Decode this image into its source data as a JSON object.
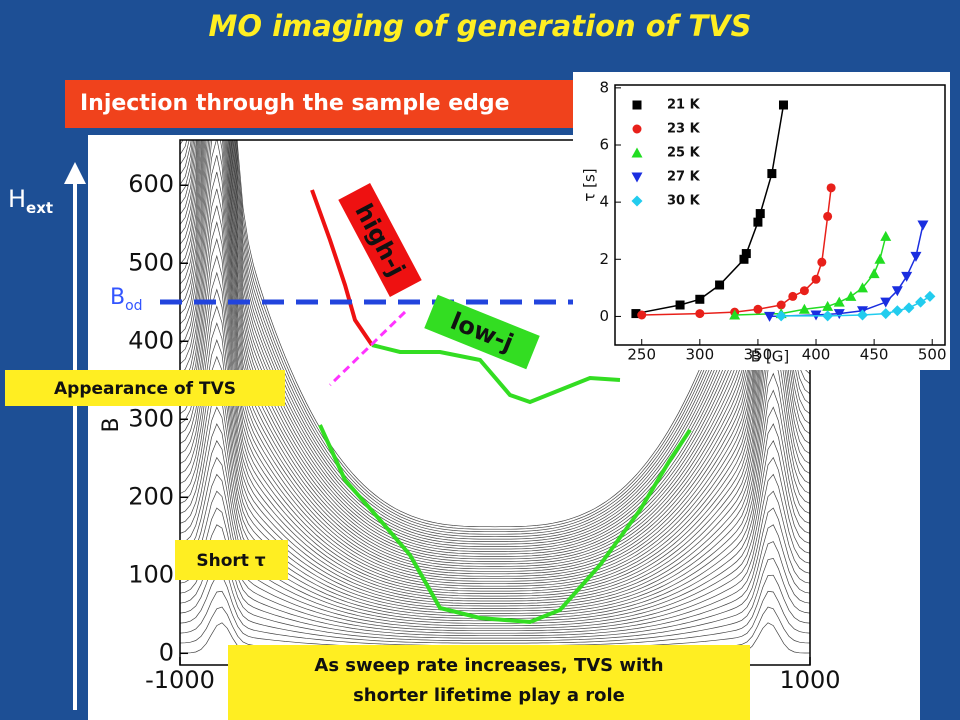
{
  "title": "MO imaging of generation of TVS",
  "banner": "Injection through the sample edge",
  "h_ext": {
    "main": "H",
    "sub": "ext"
  },
  "b_od": {
    "main": "B",
    "sub": "od"
  },
  "high_j": "high-j",
  "low_j": "low-j",
  "appearance": "Appearance of TVS",
  "short_tau": "Short τ",
  "bottom_note": [
    "As sweep rate increases, TVS with",
    "shorter lifetime play a role"
  ],
  "chart_data": [
    {
      "type": "profiles",
      "ylabel": "B",
      "xlim": [
        -1000,
        1000
      ],
      "ylim": [
        -15,
        658
      ],
      "xticks": [
        -1000,
        1000
      ],
      "yticks": [
        0,
        100,
        200,
        300,
        400,
        500,
        600
      ]
    },
    {
      "type": "scatter",
      "xlabel": "B [G]",
      "ylabel": "τ [s]",
      "xlim": [
        227,
        511
      ],
      "ylim": [
        -1,
        8.1
      ],
      "xticks": [
        250,
        300,
        350,
        400,
        450,
        500
      ],
      "yticks": [
        0,
        2,
        4,
        6,
        8
      ],
      "legend": "top-left",
      "series": [
        {
          "name": "21 K",
          "color": "#000000",
          "marker": "square",
          "x": [
            245,
            283,
            300,
            317,
            338,
            340,
            350,
            352,
            362,
            372
          ],
          "values": [
            0.1,
            0.4,
            0.6,
            1.1,
            2.0,
            2.2,
            3.3,
            3.6,
            5.0,
            7.4
          ]
        },
        {
          "name": "23 K",
          "color": "#e8201a",
          "marker": "circle",
          "x": [
            250,
            300,
            330,
            350,
            370,
            380,
            390,
            400,
            405,
            410,
            413
          ],
          "values": [
            0.05,
            0.1,
            0.15,
            0.25,
            0.4,
            0.7,
            0.9,
            1.3,
            1.9,
            3.5,
            4.5
          ]
        },
        {
          "name": "25 K",
          "color": "#22dd22",
          "marker": "triangle-up",
          "x": [
            330,
            370,
            390,
            410,
            420,
            430,
            440,
            450,
            455,
            460
          ],
          "values": [
            0.05,
            0.1,
            0.25,
            0.35,
            0.5,
            0.7,
            1.0,
            1.5,
            2.0,
            2.8
          ]
        },
        {
          "name": "27 K",
          "color": "#1a2ee0",
          "marker": "triangle-down",
          "x": [
            360,
            400,
            420,
            440,
            460,
            470,
            478,
            486,
            492
          ],
          "values": [
            0.0,
            0.05,
            0.1,
            0.2,
            0.5,
            0.9,
            1.4,
            2.1,
            3.2
          ]
        },
        {
          "name": "30 K",
          "color": "#22ccee",
          "marker": "diamond",
          "x": [
            370,
            410,
            440,
            460,
            470,
            480,
            490,
            498
          ],
          "values": [
            0.02,
            0.02,
            0.05,
            0.1,
            0.2,
            0.3,
            0.5,
            0.7
          ]
        }
      ]
    }
  ]
}
